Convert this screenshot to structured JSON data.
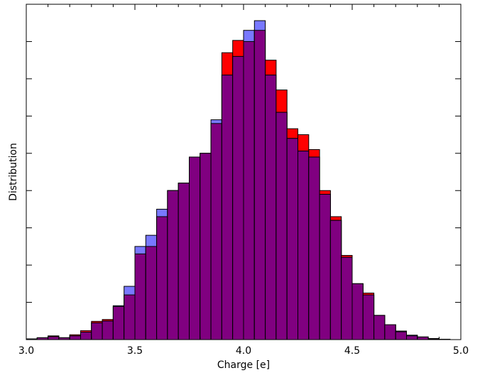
{
  "chart_data": {
    "type": "bar",
    "xlabel": "Charge [e]",
    "ylabel": "Distribution",
    "xlim": [
      3.0,
      5.0
    ],
    "ylim": [
      0,
      900
    ],
    "xticks": [
      "3.0",
      "3.5",
      "4.0",
      "4.5",
      "5.0"
    ],
    "y_tick_labels_shown": false,
    "bin_start": 3.0,
    "bin_width": 0.05,
    "series": [
      {
        "color": "#ff0000",
        "values": [
          0,
          5,
          10,
          5,
          13,
          24,
          49,
          54,
          89,
          120,
          230,
          250,
          330,
          400,
          420,
          490,
          500,
          580,
          770,
          803,
          800,
          830,
          750,
          670,
          566,
          550,
          510,
          400,
          330,
          226,
          150,
          125,
          65,
          40,
          21,
          10,
          7,
          2,
          1,
          0
        ]
      },
      {
        "color": "#7878ff",
        "values": [
          2,
          5,
          8,
          5,
          10,
          20,
          45,
          50,
          91,
          143,
          250,
          280,
          350,
          400,
          420,
          490,
          500,
          590,
          710,
          760,
          830,
          856,
          710,
          610,
          540,
          506,
          490,
          390,
          320,
          221,
          150,
          120,
          65,
          40,
          23,
          12,
          7,
          3,
          1,
          0
        ]
      }
    ]
  }
}
